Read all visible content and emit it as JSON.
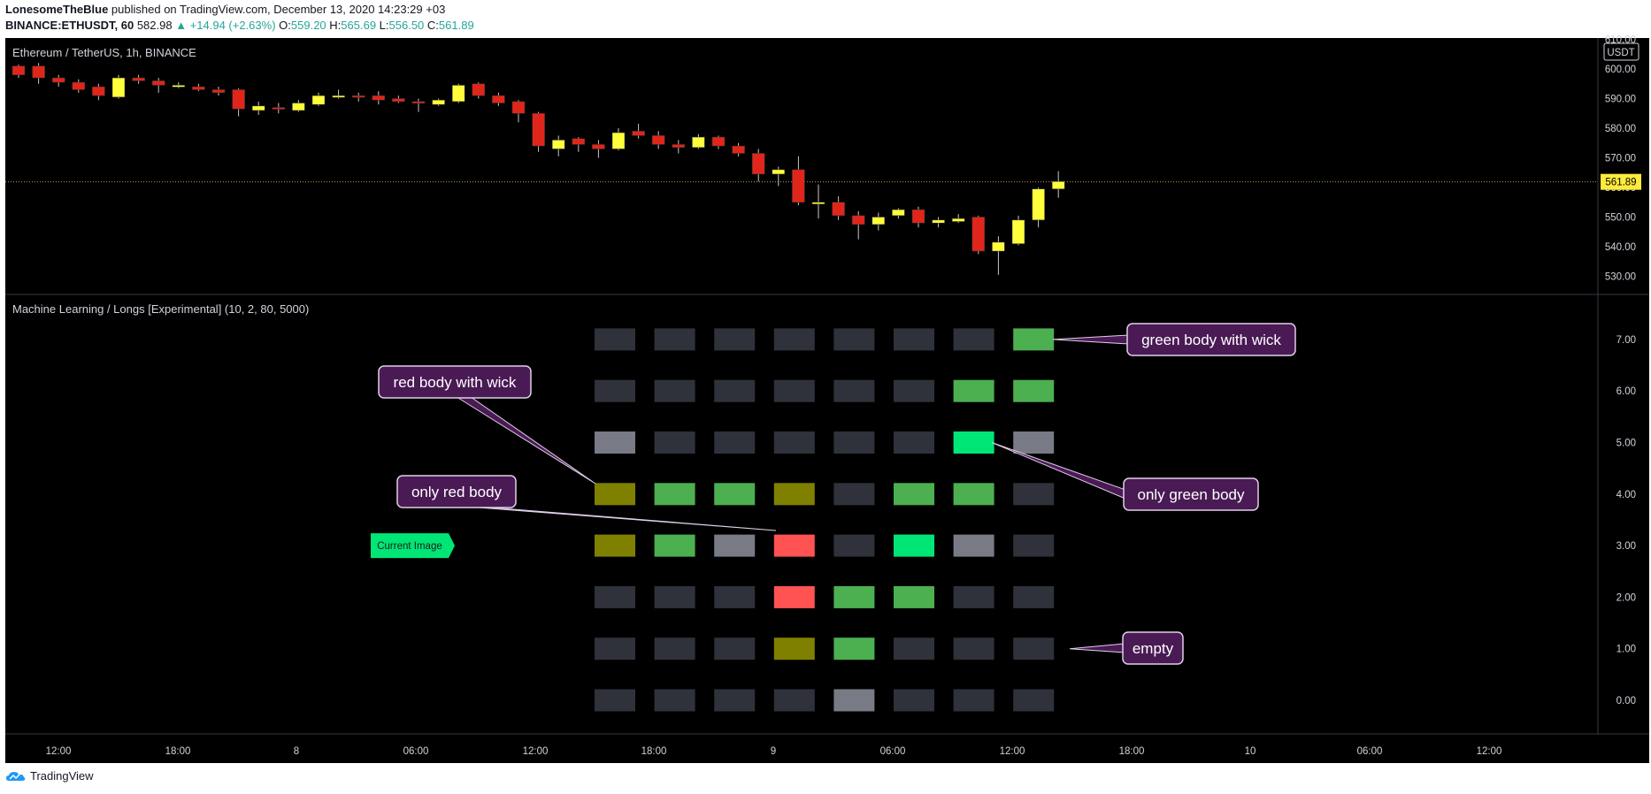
{
  "header": {
    "author": "LonesomeTheBlue",
    "published_text": "published on TradingView.com, December 13, 2020 14:23:29 +03",
    "symbol": "BINANCE:ETHUSDT, 60",
    "last": "582.98",
    "change": "▲ +14.94 (+2.63%)",
    "open_label": "O:",
    "open": "559.20",
    "high_label": "H:",
    "high": "565.69",
    "low_label": "L:",
    "low": "556.50",
    "close_label": "C:",
    "close": "561.89"
  },
  "footer": {
    "brand": "TradingView"
  },
  "colors": {
    "background": "#000000",
    "bull": "#ffff3b",
    "bear": "#e0261b",
    "empty_cell": "#2f323a",
    "green_wick": "#4caf50",
    "green_body": "#00e676",
    "red_body": "#ff5252",
    "red_wick": "#808000",
    "gray": "#787b86",
    "callout_bg": "#4a1a55",
    "current_price_tag": "#ffeb3b",
    "current_image_tag": "#00e676"
  },
  "chart_data": [
    {
      "type": "candlestick",
      "title": "Ethereum / TetherUS, 1h, BINANCE",
      "currency_label": "USDT",
      "y_ticks": [
        "610.00",
        "600.00",
        "590.00",
        "580.00",
        "570.00",
        "560.00",
        "550.00",
        "540.00",
        "530.00"
      ],
      "ylim": [
        525,
        612
      ],
      "current_price": "561.89",
      "candles": [
        {
          "o": 601,
          "h": 601.5,
          "l": 597,
          "c": 598
        },
        {
          "o": 601,
          "h": 602,
          "l": 595,
          "c": 597
        },
        {
          "o": 597,
          "h": 598,
          "l": 594,
          "c": 595.5
        },
        {
          "o": 595.5,
          "h": 596.5,
          "l": 592,
          "c": 593
        },
        {
          "o": 594,
          "h": 595,
          "l": 589.5,
          "c": 591
        },
        {
          "o": 590.5,
          "h": 598,
          "l": 590,
          "c": 597
        },
        {
          "o": 597,
          "h": 598,
          "l": 595,
          "c": 596
        },
        {
          "o": 596,
          "h": 597,
          "l": 592,
          "c": 594.5
        },
        {
          "o": 594,
          "h": 595.5,
          "l": 593.5,
          "c": 594.5
        },
        {
          "o": 594,
          "h": 595,
          "l": 592.5,
          "c": 593
        },
        {
          "o": 593,
          "h": 594,
          "l": 591,
          "c": 592
        },
        {
          "o": 593,
          "h": 593.5,
          "l": 584,
          "c": 586.5
        },
        {
          "o": 586,
          "h": 589,
          "l": 584.5,
          "c": 587.5
        },
        {
          "o": 587,
          "h": 588.5,
          "l": 585,
          "c": 586.5
        },
        {
          "o": 586,
          "h": 589.5,
          "l": 585.5,
          "c": 588.5
        },
        {
          "o": 588,
          "h": 592,
          "l": 587.5,
          "c": 591
        },
        {
          "o": 590.5,
          "h": 593,
          "l": 590,
          "c": 591
        },
        {
          "o": 591,
          "h": 592,
          "l": 589,
          "c": 590.5
        },
        {
          "o": 591,
          "h": 592.5,
          "l": 588,
          "c": 589.5
        },
        {
          "o": 590,
          "h": 591,
          "l": 588.5,
          "c": 589
        },
        {
          "o": 589,
          "h": 590,
          "l": 585.5,
          "c": 588.5
        },
        {
          "o": 588,
          "h": 590,
          "l": 587.5,
          "c": 589.5
        },
        {
          "o": 589,
          "h": 595,
          "l": 588.5,
          "c": 594.5
        },
        {
          "o": 595,
          "h": 595.5,
          "l": 590,
          "c": 591
        },
        {
          "o": 591,
          "h": 592,
          "l": 587.5,
          "c": 588.5
        },
        {
          "o": 589,
          "h": 589.5,
          "l": 582,
          "c": 585
        },
        {
          "o": 585,
          "h": 585.5,
          "l": 572,
          "c": 574
        },
        {
          "o": 573,
          "h": 577.5,
          "l": 570.5,
          "c": 576
        },
        {
          "o": 576.5,
          "h": 577,
          "l": 572,
          "c": 574.5
        },
        {
          "o": 574.5,
          "h": 576,
          "l": 570,
          "c": 573
        },
        {
          "o": 573,
          "h": 580,
          "l": 572.5,
          "c": 578.5
        },
        {
          "o": 579,
          "h": 581.5,
          "l": 576.5,
          "c": 577.5
        },
        {
          "o": 577.5,
          "h": 579,
          "l": 573,
          "c": 574.5
        },
        {
          "o": 574.5,
          "h": 576,
          "l": 571.5,
          "c": 573.5
        },
        {
          "o": 573.5,
          "h": 578,
          "l": 573,
          "c": 577
        },
        {
          "o": 577,
          "h": 577.5,
          "l": 573,
          "c": 574
        },
        {
          "o": 574,
          "h": 575,
          "l": 570.5,
          "c": 571.5
        },
        {
          "o": 571.5,
          "h": 573,
          "l": 562,
          "c": 564.5
        },
        {
          "o": 564.5,
          "h": 567,
          "l": 560.5,
          "c": 566
        },
        {
          "o": 566,
          "h": 570.5,
          "l": 554,
          "c": 555
        },
        {
          "o": 555,
          "h": 561,
          "l": 549.5,
          "c": 555
        },
        {
          "o": 555,
          "h": 557,
          "l": 549,
          "c": 550.5
        },
        {
          "o": 550.5,
          "h": 552,
          "l": 542.5,
          "c": 547.5
        },
        {
          "o": 547.5,
          "h": 551.5,
          "l": 545.5,
          "c": 550
        },
        {
          "o": 550.5,
          "h": 553,
          "l": 549.5,
          "c": 552.5
        },
        {
          "o": 552.5,
          "h": 553.5,
          "l": 546.5,
          "c": 548
        },
        {
          "o": 548,
          "h": 550,
          "l": 546.5,
          "c": 549
        },
        {
          "o": 548.5,
          "h": 551,
          "l": 548,
          "c": 549.5
        },
        {
          "o": 550,
          "h": 550.5,
          "l": 537.5,
          "c": 538.5
        },
        {
          "o": 538.5,
          "h": 543.5,
          "l": 530.5,
          "c": 541.5
        },
        {
          "o": 541,
          "h": 550.5,
          "l": 540.5,
          "c": 549
        },
        {
          "o": 549,
          "h": 560,
          "l": 546.5,
          "c": 559.5
        },
        {
          "o": 559.5,
          "h": 565.5,
          "l": 556.5,
          "c": 562
        }
      ]
    },
    {
      "type": "heatmap",
      "title": "Machine Learning / Longs [Experimental] (10, 2, 80, 5000)",
      "y_ticks": [
        "7.00",
        "6.00",
        "5.00",
        "4.00",
        "3.00",
        "2.00",
        "1.00",
        "0.00"
      ],
      "ylim": [
        -0.5,
        7.5
      ],
      "columns": 8,
      "legend": {
        "E": "empty",
        "G": "green body with wick",
        "B": "only green body",
        "R": "only red body",
        "W": "red body with wick",
        "S": "gray"
      },
      "rows": [
        {
          "y": 7,
          "cells": [
            "E",
            "E",
            "E",
            "E",
            "E",
            "E",
            "E",
            "G"
          ]
        },
        {
          "y": 6,
          "cells": [
            "E",
            "E",
            "E",
            "E",
            "E",
            "E",
            "G",
            "G"
          ]
        },
        {
          "y": 5,
          "cells": [
            "S",
            "E",
            "E",
            "E",
            "E",
            "E",
            "B",
            "S"
          ]
        },
        {
          "y": 4,
          "cells": [
            "W",
            "G",
            "G",
            "W",
            "E",
            "G",
            "G",
            "E"
          ]
        },
        {
          "y": 3,
          "cells": [
            "W",
            "G",
            "S",
            "R",
            "E",
            "B",
            "S",
            "E"
          ]
        },
        {
          "y": 2,
          "cells": [
            "E",
            "E",
            "E",
            "R",
            "G",
            "G",
            "E",
            "E"
          ]
        },
        {
          "y": 1,
          "cells": [
            "E",
            "E",
            "E",
            "W",
            "G",
            "E",
            "E",
            "E"
          ]
        },
        {
          "y": 0,
          "cells": [
            "E",
            "E",
            "E",
            "E",
            "S",
            "E",
            "E",
            "E"
          ]
        }
      ],
      "current_image_label": "Current Image",
      "callouts": [
        {
          "text": "green body with wick",
          "row": 7,
          "col": 7
        },
        {
          "text": "red body with wick",
          "row": 4,
          "col": 0
        },
        {
          "text": "only green body",
          "row": 5,
          "col": 6
        },
        {
          "text": "only red body",
          "row": 3,
          "col": 3
        },
        {
          "text": "empty",
          "row": 1,
          "col": 7
        }
      ]
    }
  ],
  "x_axis": {
    "ticks": [
      "12:00",
      "18:00",
      "8",
      "06:00",
      "12:00",
      "18:00",
      "9",
      "06:00",
      "12:00",
      "18:00",
      "10",
      "06:00",
      "12:00"
    ]
  }
}
